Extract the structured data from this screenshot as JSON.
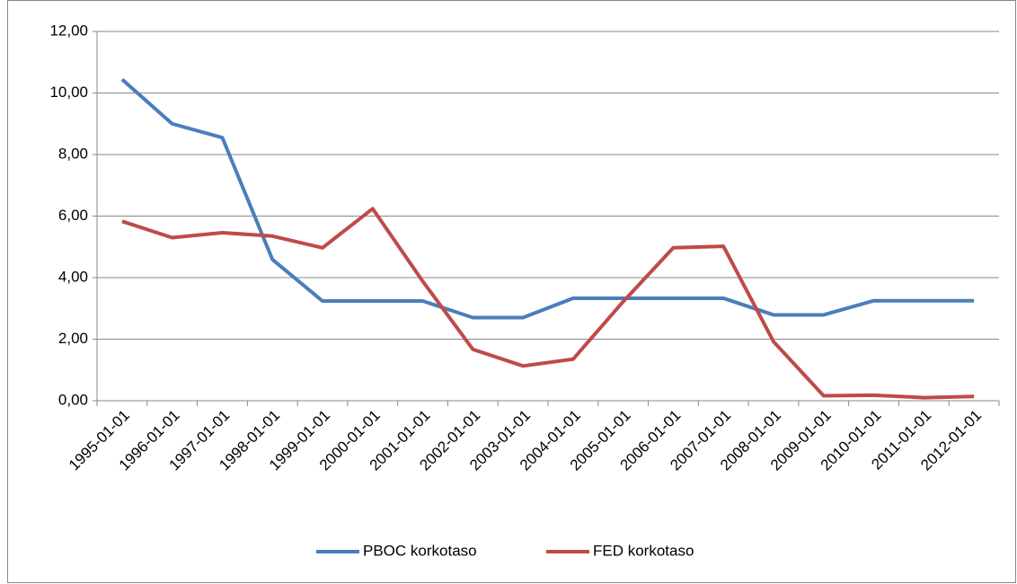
{
  "chart_data": {
    "type": "line",
    "categories": [
      "1995-01-01",
      "1996-01-01",
      "1997-01-01",
      "1998-01-01",
      "1999-01-01",
      "2000-01-01",
      "2001-01-01",
      "2002-01-01",
      "2003-01-01",
      "2004-01-01",
      "2005-01-01",
      "2006-01-01",
      "2007-01-01",
      "2008-01-01",
      "2009-01-01",
      "2010-01-01",
      "2011-01-01",
      "2012-01-01"
    ],
    "series": [
      {
        "name": "PBOC korkotaso",
        "color": "#4a7ebb",
        "values": [
          10.44,
          9.0,
          8.55,
          4.59,
          3.24,
          3.24,
          3.24,
          2.7,
          2.7,
          3.33,
          3.33,
          3.33,
          3.33,
          2.79,
          2.79,
          3.25,
          3.25,
          3.25
        ]
      },
      {
        "name": "FED korkotaso",
        "color": "#be4b48",
        "values": [
          5.83,
          5.3,
          5.46,
          5.35,
          4.97,
          6.24,
          3.88,
          1.67,
          1.13,
          1.35,
          3.22,
          4.97,
          5.02,
          1.92,
          0.16,
          0.18,
          0.1,
          0.14
        ]
      }
    ],
    "ylim": [
      0,
      12
    ],
    "yticks": [
      {
        "value": 0,
        "label": "0,00"
      },
      {
        "value": 2,
        "label": "2,00"
      },
      {
        "value": 4,
        "label": "4,00"
      },
      {
        "value": 6,
        "label": "6,00"
      },
      {
        "value": 8,
        "label": "8,00"
      },
      {
        "value": 10,
        "label": "10,00"
      },
      {
        "value": 12,
        "label": "12,00"
      }
    ],
    "grid": true,
    "legend": "bottom"
  }
}
